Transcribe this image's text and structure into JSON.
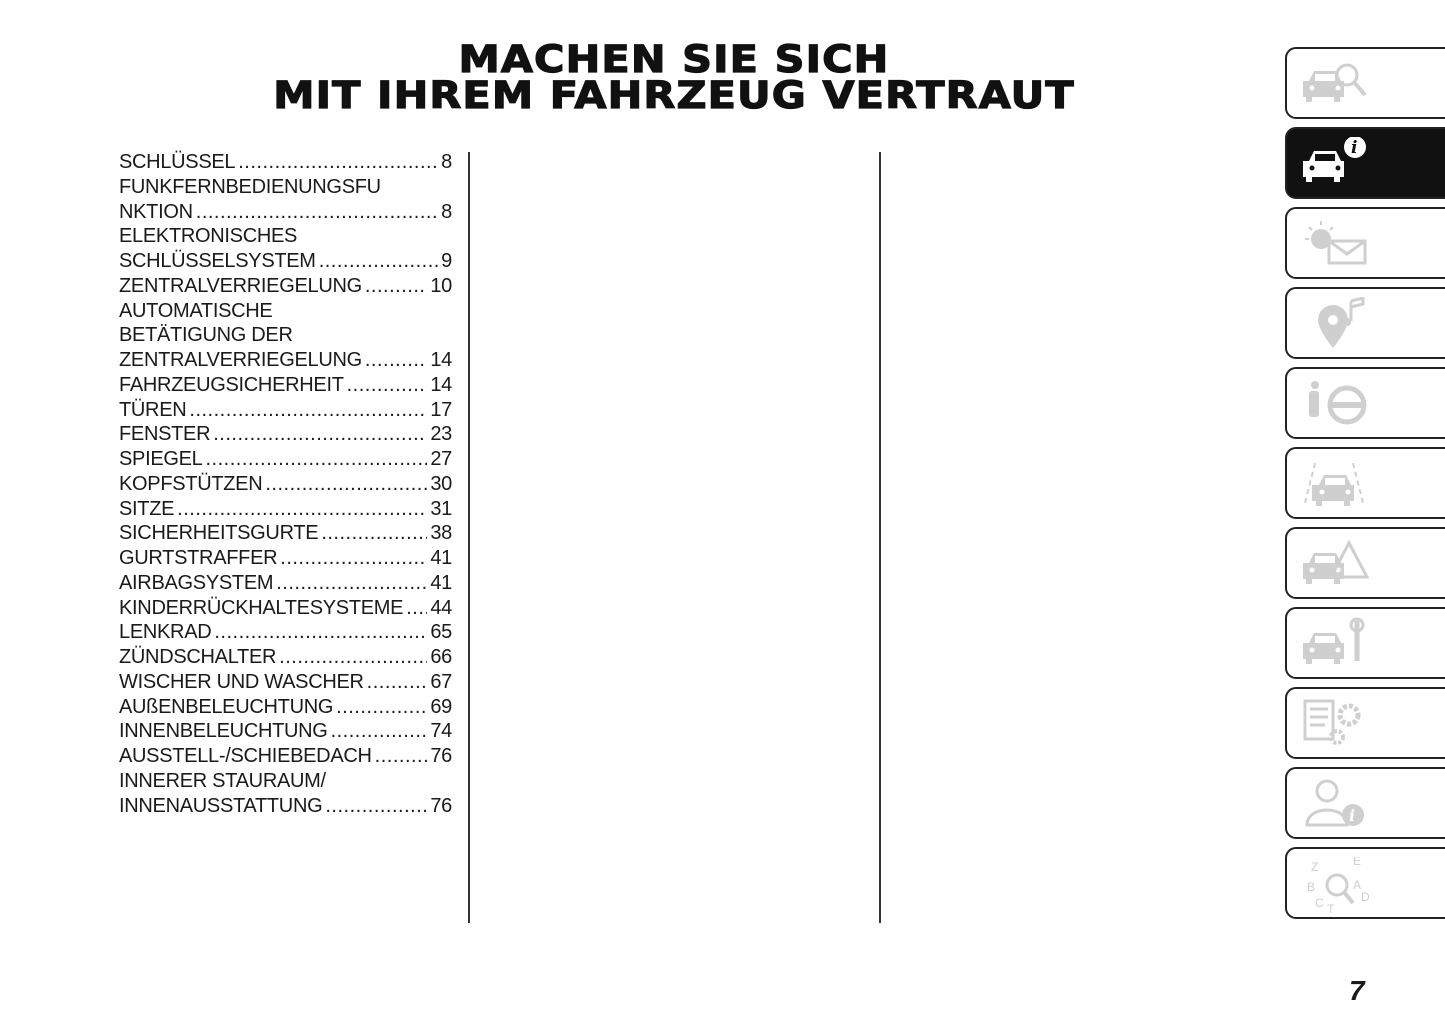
{
  "title": [
    "MACHEN SIE SICH",
    "MIT IHREM FAHRZEUG VERTRAUT"
  ],
  "toc": [
    {
      "pre": [],
      "label": "SCHLÜSSEL",
      "page": "8"
    },
    {
      "pre": [
        "FUNKFERNBEDIENUNGSFU"
      ],
      "label": "NKTION",
      "page": "8"
    },
    {
      "pre": [
        "ELEKTRONISCHES"
      ],
      "label": "SCHLÜSSELSYSTEM",
      "page": "9"
    },
    {
      "pre": [],
      "label": "ZENTRALVERRIEGELUNG",
      "page": "10"
    },
    {
      "pre": [
        "AUTOMATISCHE",
        "BETÄTIGUNG DER"
      ],
      "label": "ZENTRALVERRIEGELUNG",
      "page": "14"
    },
    {
      "pre": [],
      "label": "FAHRZEUGSICHERHEIT",
      "page": "14"
    },
    {
      "pre": [],
      "label": "TÜREN",
      "page": "17"
    },
    {
      "pre": [],
      "label": "FENSTER",
      "page": "23"
    },
    {
      "pre": [],
      "label": "SPIEGEL",
      "page": "27"
    },
    {
      "pre": [],
      "label": "KOPFSTÜTZEN",
      "page": "30"
    },
    {
      "pre": [],
      "label": "SITZE",
      "page": "31"
    },
    {
      "pre": [],
      "label": "SICHERHEITSGURTE",
      "page": "38"
    },
    {
      "pre": [],
      "label": "GURTSTRAFFER",
      "page": "41"
    },
    {
      "pre": [],
      "label": "AIRBAGSYSTEM",
      "page": "41"
    },
    {
      "pre": [],
      "label": "KINDERRÜCKHALTESYSTEME",
      "page": "44"
    },
    {
      "pre": [],
      "label": "LENKRAD",
      "page": "65"
    },
    {
      "pre": [],
      "label": "ZÜNDSCHALTER",
      "page": "66"
    },
    {
      "pre": [],
      "label": "WISCHER UND WASCHER",
      "page": "67"
    },
    {
      "pre": [],
      "label": "AUßENBELEUCHTUNG",
      "page": "69"
    },
    {
      "pre": [],
      "label": "INNENBELEUCHTUNG",
      "page": "74"
    },
    {
      "pre": [],
      "label": "AUSSTELL-/SCHIEBEDACH",
      "page": "76"
    },
    {
      "pre": [
        "INNERER STAURAUM/"
      ],
      "label": "INNENAUSSTATTUNG",
      "page": "76"
    }
  ],
  "tabs": [
    {
      "icon": "car-magnifier-icon",
      "active": false
    },
    {
      "icon": "car-info-icon",
      "active": true
    },
    {
      "icon": "warning-light-message-icon",
      "active": false
    },
    {
      "icon": "media-navigation-icon",
      "active": false
    },
    {
      "icon": "seatbelt-steering-wheel-icon",
      "active": false
    },
    {
      "icon": "car-driving-lane-icon",
      "active": false
    },
    {
      "icon": "car-emergency-triangle-icon",
      "active": false
    },
    {
      "icon": "car-wrench-icon",
      "active": false
    },
    {
      "icon": "specifications-gears-icon",
      "active": false
    },
    {
      "icon": "person-info-icon",
      "active": false
    },
    {
      "icon": "alphabetical-index-icon",
      "active": false
    }
  ],
  "page_number": "7",
  "colors": {
    "icon_inactive": "#cfcfcf",
    "tab_active": "#111111"
  }
}
